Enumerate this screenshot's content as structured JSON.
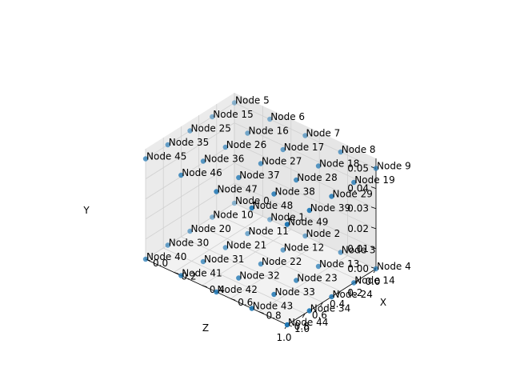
{
  "chart_data": {
    "type": "scatter",
    "projection": "3d",
    "title": "",
    "axes": {
      "x": {
        "label": "X",
        "range": [
          0,
          1
        ],
        "ticks": [
          "0.0",
          "0.2",
          "0.4",
          "0.6",
          "0.8",
          "1.0"
        ]
      },
      "y": {
        "label": "Y",
        "range": [
          0,
          0.055
        ],
        "ticks": [
          "0.00",
          "0.01",
          "0.02",
          "0.03",
          "0.04",
          "0.05"
        ]
      },
      "z": {
        "label": "Z",
        "range": [
          0,
          1
        ],
        "ticks": [
          "0.0",
          "0.2",
          "0.4",
          "0.6",
          "0.8",
          "1.0"
        ]
      }
    },
    "grid": true,
    "marker_color": "#1f77b4",
    "points": [
      {
        "label": "Node 0",
        "x": 0.0,
        "y": 0.0,
        "z": 0.0
      },
      {
        "label": "Node 1",
        "x": 0.25,
        "y": 0.0,
        "z": 0.0
      },
      {
        "label": "Node 2",
        "x": 0.5,
        "y": 0.0,
        "z": 0.0
      },
      {
        "label": "Node 3",
        "x": 0.75,
        "y": 0.0,
        "z": 0.0
      },
      {
        "label": "Node 4",
        "x": 1.0,
        "y": 0.0,
        "z": 0.0
      },
      {
        "label": "Node 5",
        "x": 0.0,
        "y": 0.05,
        "z": 0.0
      },
      {
        "label": "Node 6",
        "x": 0.25,
        "y": 0.05,
        "z": 0.0
      },
      {
        "label": "Node 7",
        "x": 0.5,
        "y": 0.05,
        "z": 0.0
      },
      {
        "label": "Node 8",
        "x": 0.75,
        "y": 0.05,
        "z": 0.0
      },
      {
        "label": "Node 9",
        "x": 1.0,
        "y": 0.05,
        "z": 0.0
      },
      {
        "label": "Node 10",
        "x": 0.0,
        "y": 0.0,
        "z": 0.25
      },
      {
        "label": "Node 11",
        "x": 0.25,
        "y": 0.0,
        "z": 0.25
      },
      {
        "label": "Node 12",
        "x": 0.5,
        "y": 0.0,
        "z": 0.25
      },
      {
        "label": "Node 13",
        "x": 0.75,
        "y": 0.0,
        "z": 0.25
      },
      {
        "label": "Node 14",
        "x": 1.0,
        "y": 0.0,
        "z": 0.25
      },
      {
        "label": "Node 15",
        "x": 0.0,
        "y": 0.05,
        "z": 0.25
      },
      {
        "label": "Node 16",
        "x": 0.25,
        "y": 0.05,
        "z": 0.25
      },
      {
        "label": "Node 17",
        "x": 0.5,
        "y": 0.05,
        "z": 0.25
      },
      {
        "label": "Node 18",
        "x": 0.75,
        "y": 0.05,
        "z": 0.25
      },
      {
        "label": "Node 19",
        "x": 1.0,
        "y": 0.05,
        "z": 0.25
      },
      {
        "label": "Node 20",
        "x": 0.0,
        "y": 0.0,
        "z": 0.5
      },
      {
        "label": "Node 21",
        "x": 0.25,
        "y": 0.0,
        "z": 0.5
      },
      {
        "label": "Node 22",
        "x": 0.5,
        "y": 0.0,
        "z": 0.5
      },
      {
        "label": "Node 23",
        "x": 0.75,
        "y": 0.0,
        "z": 0.5
      },
      {
        "label": "Node 24",
        "x": 1.0,
        "y": 0.0,
        "z": 0.5
      },
      {
        "label": "Node 25",
        "x": 0.0,
        "y": 0.05,
        "z": 0.5
      },
      {
        "label": "Node 26",
        "x": 0.25,
        "y": 0.05,
        "z": 0.5
      },
      {
        "label": "Node 27",
        "x": 0.5,
        "y": 0.05,
        "z": 0.5
      },
      {
        "label": "Node 28",
        "x": 0.75,
        "y": 0.05,
        "z": 0.5
      },
      {
        "label": "Node 29",
        "x": 1.0,
        "y": 0.05,
        "z": 0.5
      },
      {
        "label": "Node 30",
        "x": 0.0,
        "y": 0.0,
        "z": 0.75
      },
      {
        "label": "Node 31",
        "x": 0.25,
        "y": 0.0,
        "z": 0.75
      },
      {
        "label": "Node 32",
        "x": 0.5,
        "y": 0.0,
        "z": 0.75
      },
      {
        "label": "Node 33",
        "x": 0.75,
        "y": 0.0,
        "z": 0.75
      },
      {
        "label": "Node 34",
        "x": 1.0,
        "y": 0.0,
        "z": 0.75
      },
      {
        "label": "Node 35",
        "x": 0.0,
        "y": 0.05,
        "z": 0.75
      },
      {
        "label": "Node 36",
        "x": 0.25,
        "y": 0.05,
        "z": 0.75
      },
      {
        "label": "Node 37",
        "x": 0.5,
        "y": 0.05,
        "z": 0.75
      },
      {
        "label": "Node 38",
        "x": 0.75,
        "y": 0.05,
        "z": 0.75
      },
      {
        "label": "Node 39",
        "x": 1.0,
        "y": 0.05,
        "z": 0.75
      },
      {
        "label": "Node 40",
        "x": 0.0,
        "y": 0.0,
        "z": 1.0
      },
      {
        "label": "Node 41",
        "x": 0.25,
        "y": 0.0,
        "z": 1.0
      },
      {
        "label": "Node 42",
        "x": 0.5,
        "y": 0.0,
        "z": 1.0
      },
      {
        "label": "Node 43",
        "x": 0.75,
        "y": 0.0,
        "z": 1.0
      },
      {
        "label": "Node 44",
        "x": 1.0,
        "y": 0.0,
        "z": 1.0
      },
      {
        "label": "Node 45",
        "x": 0.0,
        "y": 0.05,
        "z": 1.0
      },
      {
        "label": "Node 46",
        "x": 0.25,
        "y": 0.05,
        "z": 1.0
      },
      {
        "label": "Node 47",
        "x": 0.5,
        "y": 0.05,
        "z": 1.0
      },
      {
        "label": "Node 48",
        "x": 0.75,
        "y": 0.05,
        "z": 1.0
      },
      {
        "label": "Node 49",
        "x": 1.0,
        "y": 0.05,
        "z": 1.0
      }
    ]
  }
}
